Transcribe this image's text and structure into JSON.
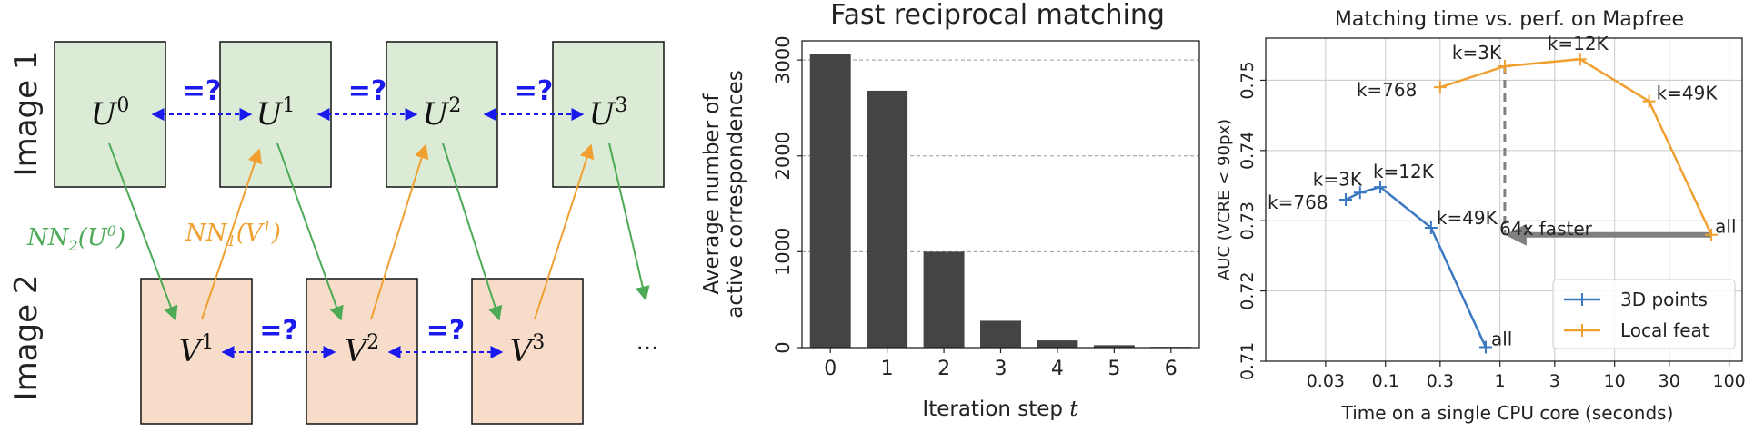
{
  "diagram": {
    "row_labels": [
      "Image 1",
      "Image 2"
    ],
    "top_nodes": [
      "U",
      "U",
      "U",
      "U"
    ],
    "top_sups": [
      "0",
      "1",
      "2",
      "3"
    ],
    "bottom_nodes": [
      "V",
      "V",
      "V"
    ],
    "bottom_sups": [
      "1",
      "2",
      "3"
    ],
    "eq_label": "=?",
    "nn2_label": "NN",
    "nn2_sub": "2",
    "nn2_arg": "(U",
    "nn2_arg_sup": "0",
    "nn2_close": ")",
    "nn1_label": "NN",
    "nn1_sub": "1",
    "nn1_arg": "(V",
    "nn1_arg_sup": "1",
    "nn1_close": ")",
    "ellipsis": "...",
    "colors": {
      "top_fill": "#dcebd5",
      "bottom_fill": "#f7ddc9",
      "green_arrow": "#4daa57",
      "orange_arrow": "#f0a030",
      "blue_eq": "#1a1aee"
    }
  },
  "chart_data": [
    {
      "type": "bar",
      "title": "Fast reciprocal matching",
      "xlabel": "Iteration step",
      "xlabel_var": "t",
      "ylabel": [
        "Average number of",
        "active correspondences"
      ],
      "categories": [
        "0",
        "1",
        "2",
        "3",
        "4",
        "5",
        "6"
      ],
      "values": [
        3060,
        2680,
        1000,
        280,
        75,
        25,
        8
      ],
      "ylim": [
        0,
        3200
      ],
      "yticks": [
        0,
        1000,
        2000,
        3000
      ],
      "grid": "y-dashed",
      "bar_color": "#444444"
    },
    {
      "type": "line",
      "title": "Matching time vs. perf. on Mapfree",
      "xlabel": "Time on a single CPU core (seconds)",
      "ylabel": "AUC (VCRE < 90px)",
      "x_scale": "log",
      "xlim": [
        0.009,
        130
      ],
      "ylim": [
        0.71,
        0.756
      ],
      "xticks": [
        0.03,
        0.1,
        0.3,
        1,
        3,
        10,
        30,
        100
      ],
      "xtick_labels": [
        "0.03",
        "0.1",
        "0.3",
        "1",
        "3",
        "10",
        "30",
        "100"
      ],
      "yticks": [
        0.71,
        0.72,
        0.73,
        0.74,
        0.75
      ],
      "ytick_labels": [
        "0.71",
        "0.72",
        "0.73",
        "0.74",
        "0.75"
      ],
      "grid": true,
      "legend_position": "bottom-right",
      "series": [
        {
          "name": "3D points",
          "color": "#3b78c2",
          "points": [
            {
              "x": 0.045,
              "y": 0.733,
              "label": "k=768"
            },
            {
              "x": 0.06,
              "y": 0.734,
              "label": "k=3K"
            },
            {
              "x": 0.09,
              "y": 0.7348,
              "label": "k=12K"
            },
            {
              "x": 0.25,
              "y": 0.729,
              "label": "k=49K"
            },
            {
              "x": 0.75,
              "y": 0.712,
              "label": "all"
            }
          ]
        },
        {
          "name": "Local feat",
          "color": "#f0a030",
          "points": [
            {
              "x": 0.3,
              "y": 0.749,
              "label": "k=768"
            },
            {
              "x": 1.1,
              "y": 0.752,
              "label": "k=3K"
            },
            {
              "x": 5.0,
              "y": 0.753,
              "label": "k=12K"
            },
            {
              "x": 20.0,
              "y": 0.747,
              "label": "k=49K"
            },
            {
              "x": 70.0,
              "y": 0.728,
              "label": "all"
            }
          ]
        }
      ],
      "annotation": {
        "text": "64x faster",
        "from_x": 70.0,
        "to_x": 1.1,
        "y": 0.728,
        "color": "#808080",
        "drop_x": 1.1,
        "drop_from_y": 0.752,
        "drop_to_y": 0.728
      }
    }
  ]
}
